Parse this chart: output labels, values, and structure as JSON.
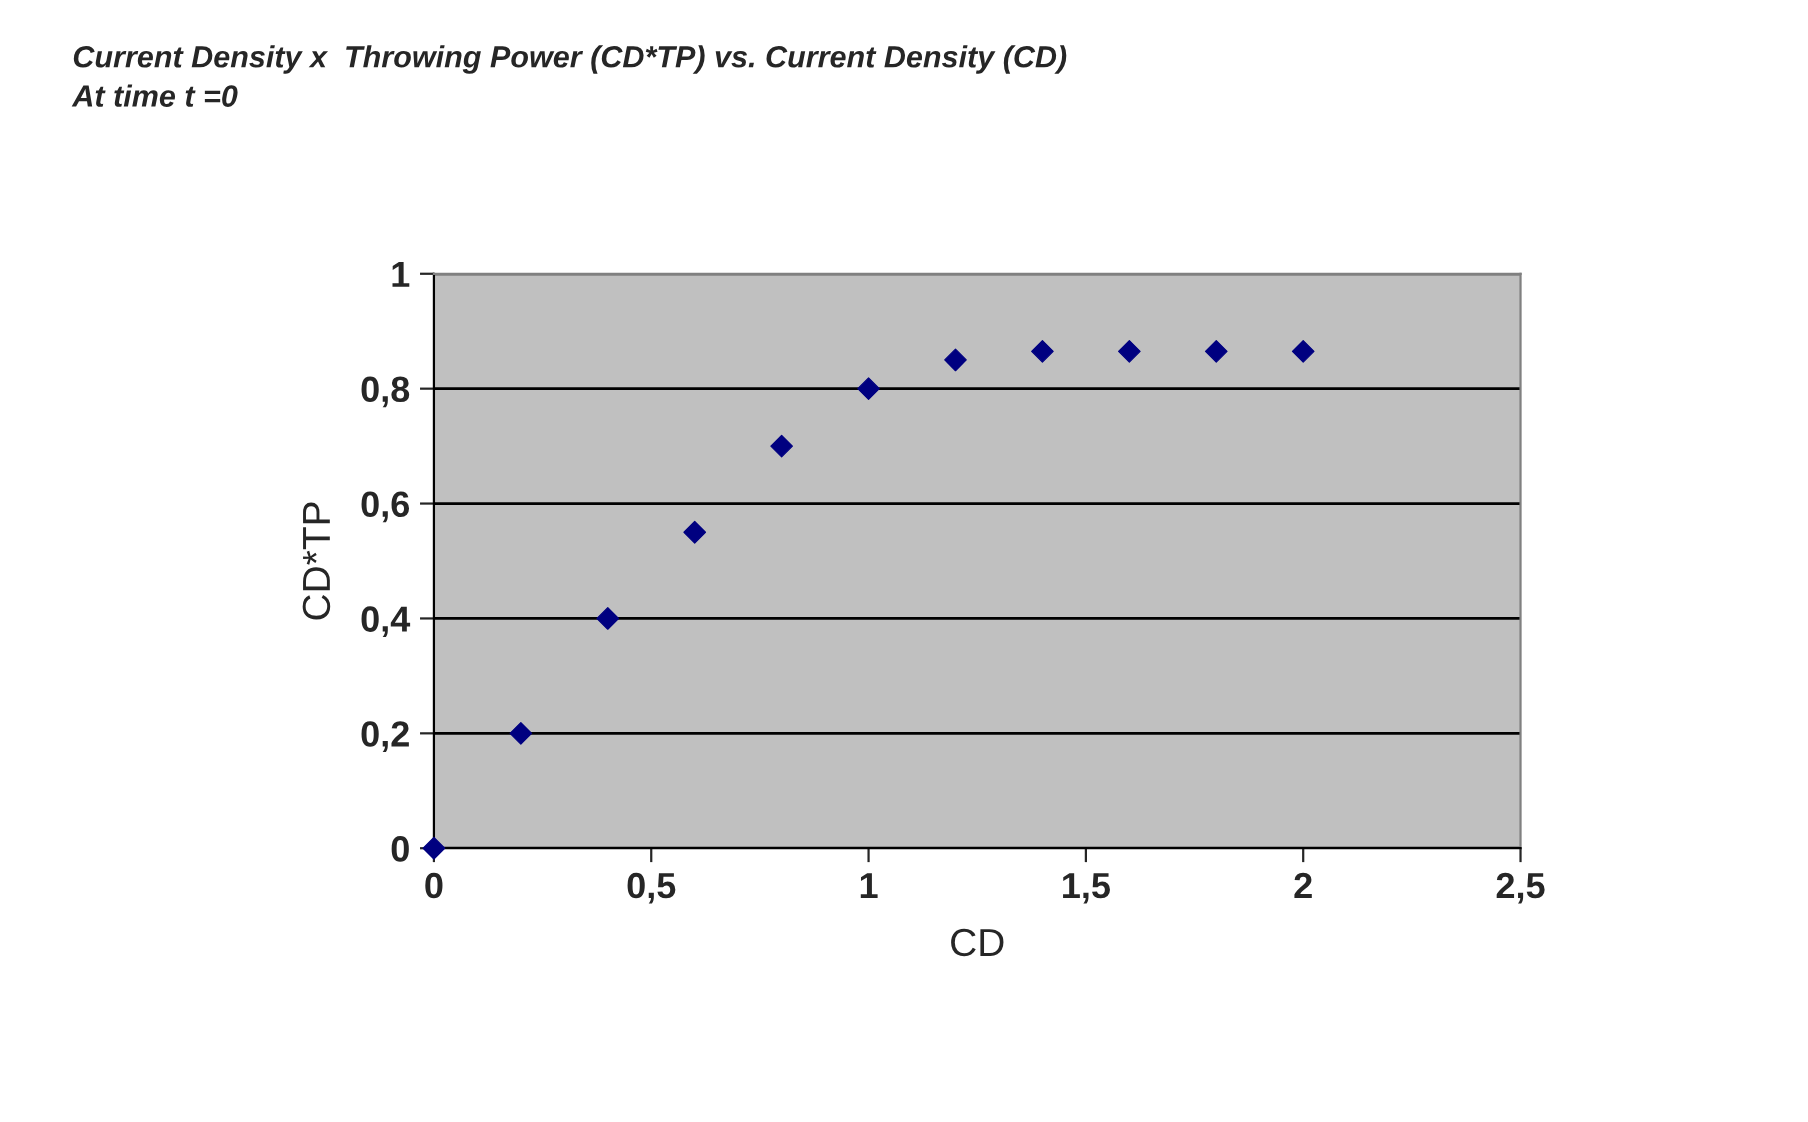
{
  "chart_data": {
    "type": "scatter",
    "title": "Current Density x  Throwing Power (CD*TP) vs. Current Density (CD)",
    "subtitle": "At time t =0",
    "xlabel": "CD",
    "ylabel": "CD*TP",
    "x": [
      0,
      0.2,
      0.4,
      0.6,
      0.8,
      1.0,
      1.2,
      1.4,
      1.6,
      1.8,
      2.0
    ],
    "series": [
      {
        "color": "#000080",
        "values": [
          0,
          0.2,
          0.4,
          0.55,
          0.7,
          0.8,
          0.85,
          0.865,
          0.865,
          0.865,
          0.865
        ]
      }
    ],
    "xlim": [
      0,
      2.5
    ],
    "ylim": [
      0,
      1
    ],
    "xticks": [
      0,
      {
        "value": 0.5,
        "label": "0,5"
      },
      1,
      {
        "value": 1.5,
        "label": "1,5"
      },
      2,
      {
        "value": 2.5,
        "label": "2,5"
      }
    ],
    "yticks": [
      0,
      {
        "value": 0.2,
        "label": "0,2"
      },
      {
        "value": 0.4,
        "label": "0,4"
      },
      {
        "value": 0.6,
        "label": "0,6"
      },
      {
        "value": 0.8,
        "label": "0,8"
      },
      1
    ],
    "grid": "y",
    "marker": "diamond",
    "legend": false
  }
}
